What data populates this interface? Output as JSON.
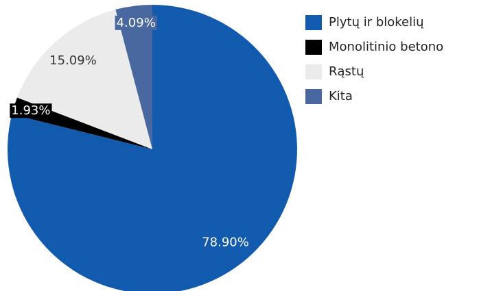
{
  "chart_data": {
    "type": "pie",
    "categories": [
      "Plytų ir blokelių",
      "Monolitinio betono",
      "Rąstų",
      "Kita"
    ],
    "values": [
      78.9,
      1.93,
      15.09,
      4.09
    ],
    "value_labels": [
      "78.90%",
      "1.93%",
      "15.09%",
      "4.09%"
    ],
    "colors": [
      "#125aad",
      "#000000",
      "#ebebeb",
      "#4a68a0"
    ],
    "legend": "right"
  }
}
